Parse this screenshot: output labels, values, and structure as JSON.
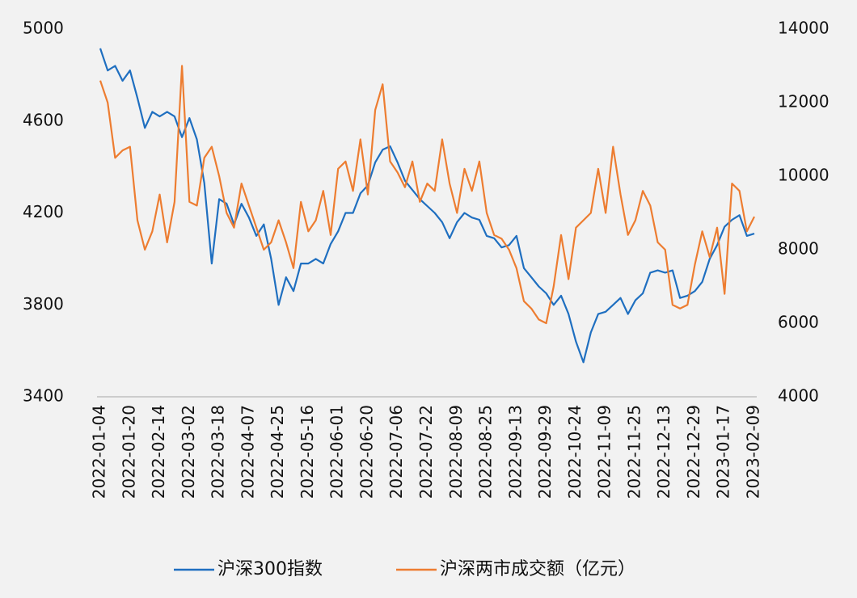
{
  "chart_data": {
    "type": "line",
    "categories": [
      "2022-01-04",
      null,
      null,
      null,
      "2022-01-20",
      null,
      null,
      null,
      "2022-02-14",
      null,
      null,
      null,
      "2022-03-02",
      null,
      null,
      null,
      "2022-03-18",
      null,
      null,
      null,
      "2022-04-07",
      null,
      null,
      null,
      "2022-04-25",
      null,
      null,
      null,
      "2022-05-16",
      null,
      null,
      null,
      "2022-06-01",
      null,
      null,
      null,
      "2022-06-20",
      null,
      null,
      null,
      "2022-07-06",
      null,
      null,
      null,
      "2022-07-22",
      null,
      null,
      null,
      "2022-08-09",
      null,
      null,
      null,
      "2022-08-25",
      null,
      null,
      null,
      "2022-09-13",
      null,
      null,
      null,
      "2022-09-29",
      null,
      null,
      null,
      "2022-10-24",
      null,
      null,
      null,
      "2022-11-09",
      null,
      null,
      null,
      "2022-11-25",
      null,
      null,
      null,
      "2022-12-13",
      null,
      null,
      null,
      "2022-12-29",
      null,
      null,
      null,
      "2023-01-17",
      null,
      null,
      null,
      "2023-02-09"
    ],
    "series": [
      {
        "name": "沪深300指数",
        "color": "#1f6fc0",
        "axis": "y",
        "values": [
          4916,
          4820,
          4840,
          4775,
          4820,
          4700,
          4570,
          4640,
          4620,
          4640,
          4620,
          4530,
          4613,
          4520,
          4330,
          3980,
          4260,
          4240,
          4150,
          4240,
          4180,
          4100,
          4150,
          4000,
          3800,
          3920,
          3860,
          3980,
          3980,
          4000,
          3980,
          4065,
          4120,
          4200,
          4200,
          4285,
          4320,
          4420,
          4475,
          4490,
          4420,
          4340,
          4300,
          4260,
          4230,
          4200,
          4160,
          4090,
          4160,
          4200,
          4180,
          4170,
          4100,
          4090,
          4050,
          4060,
          4100,
          3960,
          3920,
          3880,
          3850,
          3800,
          3840,
          3760,
          3640,
          3550,
          3680,
          3760,
          3770,
          3800,
          3830,
          3760,
          3820,
          3850,
          3940,
          3950,
          3940,
          3950,
          3830,
          3840,
          3860,
          3900,
          4000,
          4060,
          4140,
          4170,
          4190,
          4100,
          4110
        ]
      },
      {
        "name": "沪深两市成交额（亿元）",
        "color": "#ed7d31",
        "axis": "y2",
        "values": [
          12600,
          12000,
          10500,
          10700,
          10800,
          8800,
          8000,
          8500,
          9500,
          8200,
          9300,
          13000,
          9300,
          9200,
          10500,
          10800,
          10000,
          9000,
          8600,
          9800,
          9200,
          8600,
          8000,
          8200,
          8800,
          8200,
          7500,
          9300,
          8500,
          8800,
          9600,
          8400,
          10200,
          10400,
          9600,
          11000,
          9500,
          11800,
          12500,
          10400,
          10100,
          9700,
          10400,
          9300,
          9800,
          9600,
          11000,
          9800,
          9000,
          10200,
          9600,
          10400,
          9000,
          8400,
          8300,
          8000,
          7500,
          6600,
          6400,
          6100,
          6000,
          7000,
          8400,
          7200,
          8600,
          8800,
          9000,
          10200,
          9000,
          10800,
          9500,
          8400,
          8800,
          9600,
          9200,
          8200,
          8000,
          6500,
          6400,
          6500,
          7600,
          8500,
          7800,
          8600,
          6800,
          9800,
          9600,
          8500,
          8900
        ]
      }
    ],
    "ylim": [
      3400,
      5000
    ],
    "yticks": [
      3400,
      3800,
      4200,
      4600,
      5000
    ],
    "y2lim": [
      4000,
      14000
    ],
    "y2ticks": [
      4000,
      6000,
      8000,
      10000,
      12000,
      14000
    ],
    "legend": "bottom"
  }
}
